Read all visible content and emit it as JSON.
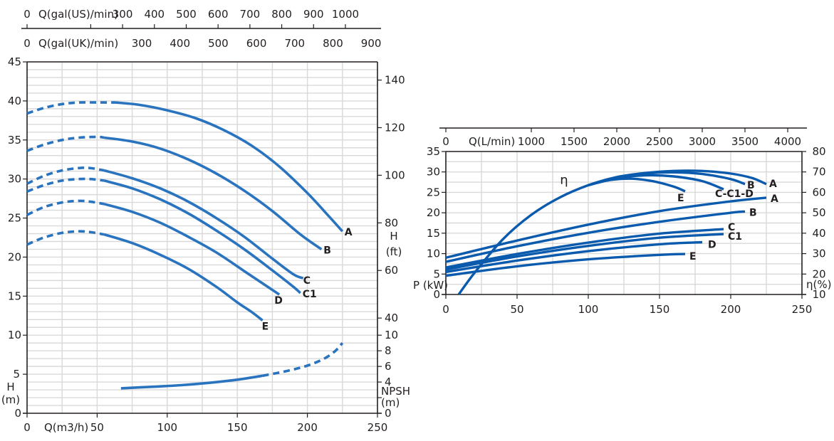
{
  "colors": {
    "curve_left": "#2a74bf",
    "curve_right": "#0a5aad",
    "grid": "#d9d9d9",
    "axis": "#231f20"
  },
  "chart_data": [
    {
      "id": "head-npsh",
      "type": "line",
      "title": "",
      "xlabel": "Q(m3/h)",
      "ylabel": "H (m)",
      "y2label": "H (ft)",
      "npsh_label": "NPSH (m)",
      "xlim": [
        0,
        250
      ],
      "ylim": [
        0,
        45
      ],
      "xticks": [
        0,
        50,
        100,
        150,
        200,
        250
      ],
      "yticks": [
        0,
        5,
        10,
        15,
        20,
        25,
        30,
        35,
        40,
        45
      ],
      "y2ticks_ft": [
        40,
        60,
        80,
        100,
        120,
        140
      ],
      "npsh_ticks": [
        0,
        2,
        4,
        6,
        8,
        10
      ],
      "npsh_tick_labels": [
        "0",
        "",
        "4",
        "6",
        "8",
        "10"
      ],
      "top_axes": [
        {
          "label": "Q(gal(US)/min)",
          "ticks": [
            0,
            200,
            300,
            400,
            500,
            600,
            700,
            800,
            900,
            1000
          ],
          "tick_labels": [
            "0",
            "",
            "300",
            "400",
            "500",
            "600",
            "700",
            "800",
            "900",
            "1000"
          ],
          "m3h_per_unit": 0.22712
        },
        {
          "label": "Q(gal(UK)/min)",
          "ticks": [
            0,
            300,
            400,
            500,
            600,
            700,
            800,
            900
          ],
          "tick_labels": [
            "0",
            "300",
            "400",
            "500",
            "600",
            "700",
            "800",
            "900"
          ],
          "m3h_per_unit": 0.27277
        }
      ],
      "grid": true,
      "series": [
        {
          "name": "A",
          "dashed_x": [
            0,
            12,
            25,
            37,
            50,
            63
          ],
          "dashed_y": [
            38.4,
            39.1,
            39.6,
            39.8,
            39.8,
            39.8
          ],
          "solid_x": [
            63,
            80,
            100,
            120,
            140,
            160,
            180,
            200,
            215,
            225
          ],
          "solid_y": [
            39.8,
            39.5,
            38.8,
            37.8,
            36.3,
            34.3,
            31.6,
            28.2,
            25.3,
            23.3
          ]
        },
        {
          "name": "B",
          "dashed_x": [
            0,
            12,
            25,
            37,
            50,
            55
          ],
          "dashed_y": [
            33.6,
            34.4,
            35.0,
            35.3,
            35.4,
            35.3
          ],
          "solid_x": [
            55,
            75,
            95,
            115,
            135,
            155,
            175,
            195,
            210
          ],
          "solid_y": [
            35.3,
            34.8,
            33.9,
            32.5,
            30.7,
            28.5,
            25.9,
            22.9,
            21.0
          ]
        },
        {
          "name": "C",
          "dashed_x": [
            0,
            12,
            25,
            37,
            45,
            55
          ],
          "dashed_y": [
            29.4,
            30.4,
            31.1,
            31.4,
            31.4,
            31.1
          ],
          "solid_x": [
            55,
            75,
            95,
            115,
            135,
            155,
            175,
            190,
            197
          ],
          "solid_y": [
            31.1,
            30.1,
            28.8,
            27.1,
            25.0,
            22.6,
            19.8,
            17.8,
            17.3
          ]
        },
        {
          "name": "C1",
          "dashed_x": [
            0,
            12,
            25,
            37,
            45,
            55
          ],
          "dashed_y": [
            28.4,
            29.2,
            29.8,
            30.0,
            30.0,
            29.8
          ],
          "solid_x": [
            55,
            75,
            95,
            115,
            135,
            155,
            175,
            190,
            195
          ],
          "solid_y": [
            29.8,
            28.8,
            27.4,
            25.6,
            23.4,
            21.0,
            18.3,
            16.2,
            15.4
          ]
        },
        {
          "name": "D",
          "dashed_x": [
            0,
            12,
            25,
            37,
            45,
            55
          ],
          "dashed_y": [
            25.4,
            26.4,
            27.0,
            27.2,
            27.1,
            26.8
          ],
          "solid_x": [
            55,
            75,
            95,
            115,
            135,
            155,
            170,
            180
          ],
          "solid_y": [
            26.8,
            25.8,
            24.4,
            22.6,
            20.6,
            18.2,
            16.4,
            15.2
          ]
        },
        {
          "name": "E",
          "dashed_x": [
            0,
            12,
            25,
            37,
            45,
            55
          ],
          "dashed_y": [
            21.6,
            22.5,
            23.1,
            23.3,
            23.2,
            22.9
          ],
          "solid_x": [
            55,
            75,
            95,
            115,
            135,
            150,
            160,
            168
          ],
          "solid_y": [
            22.9,
            21.8,
            20.3,
            18.5,
            16.2,
            14.2,
            13.0,
            11.9
          ]
        },
        {
          "name": "NPSH",
          "axis": "npsh",
          "solid_x": [
            67,
            90,
            110,
            130,
            150,
            168
          ],
          "solid_y": [
            3.2,
            3.4,
            3.6,
            3.9,
            4.3,
            4.8
          ],
          "dashed_x": [
            168,
            185,
            200,
            212,
            220,
            225
          ],
          "dashed_y": [
            4.8,
            5.4,
            6.1,
            7.0,
            8.0,
            9.0
          ]
        }
      ]
    },
    {
      "id": "power-efficiency",
      "type": "line",
      "title": "",
      "xlabel": "",
      "ylabel": "P (kW)",
      "y2label": "η(%)",
      "eta_symbol": "η",
      "xlim": [
        0,
        250
      ],
      "ylim": [
        0,
        35
      ],
      "y2lim": [
        10,
        80
      ],
      "xticks": [
        0,
        50,
        100,
        150,
        200,
        250
      ],
      "yticks": [
        0,
        5,
        10,
        15,
        20,
        25,
        30,
        35
      ],
      "y2ticks": [
        10,
        20,
        30,
        40,
        50,
        60,
        70,
        80
      ],
      "top_axis": {
        "label": "Q(L/min)",
        "ticks": [
          0,
          1000,
          1500,
          2000,
          2500,
          3000,
          3500,
          4000
        ],
        "tick_labels": [
          "0",
          "1000",
          "1500",
          "2000",
          "2500",
          "3000",
          "3500",
          "4000"
        ],
        "m3h_per_unit": 0.06
      },
      "grid": true,
      "power_series": [
        {
          "name": "A",
          "x": [
            0,
            50,
            100,
            150,
            200,
            225
          ],
          "y": [
            9.0,
            13.2,
            17.1,
            20.4,
            22.8,
            23.7
          ]
        },
        {
          "name": "B",
          "x": [
            0,
            50,
            100,
            150,
            200,
            210
          ],
          "y": [
            8.0,
            11.8,
            15.1,
            17.8,
            20.0,
            20.3
          ]
        },
        {
          "name": "C",
          "x": [
            0,
            50,
            100,
            150,
            195
          ],
          "y": [
            6.6,
            9.9,
            12.7,
            14.9,
            16.0
          ]
        },
        {
          "name": "C1",
          "x": [
            0,
            50,
            100,
            150,
            195
          ],
          "y": [
            6.1,
            9.3,
            11.9,
            13.9,
            14.8
          ]
        },
        {
          "name": "D",
          "x": [
            0,
            50,
            100,
            150,
            180
          ],
          "y": [
            5.5,
            8.3,
            10.6,
            12.3,
            12.8
          ]
        },
        {
          "name": "E",
          "x": [
            0,
            50,
            100,
            150,
            168
          ],
          "y": [
            4.6,
            6.9,
            8.6,
            9.7,
            9.9
          ]
        }
      ],
      "efficiency_series": [
        {
          "name": "A",
          "x": [
            9,
            20,
            40,
            60,
            80,
            100,
            120,
            140,
            160,
            180,
            200,
            215,
            225
          ],
          "y": [
            10,
            20.5,
            37,
            49,
            57.5,
            63.5,
            67.5,
            69.5,
            70.5,
            70.5,
            69.2,
            67,
            64
          ]
        },
        {
          "name": "B",
          "x": [
            100,
            120,
            140,
            160,
            180,
            200,
            210
          ],
          "y": [
            63.5,
            67.3,
            69.2,
            69.8,
            69,
            66.5,
            64
          ]
        },
        {
          "name": "C-C1-D",
          "x": [
            100,
            120,
            140,
            160,
            180,
            195
          ],
          "y": [
            63.5,
            67,
            68.3,
            67.8,
            65.5,
            61.5
          ]
        },
        {
          "name": "E",
          "x": [
            100,
            115,
            130,
            145,
            160,
            168
          ],
          "y": [
            63.5,
            66,
            66.7,
            65.5,
            62.8,
            60.5
          ]
        }
      ],
      "power_labels": [
        "A",
        "B",
        "C",
        "C1",
        "D",
        "E"
      ],
      "efficiency_labels": [
        "A",
        "B",
        "C-C1-D",
        "E"
      ]
    }
  ]
}
